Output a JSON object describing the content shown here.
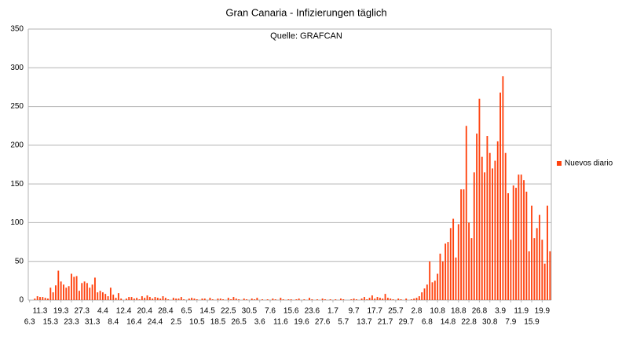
{
  "chart_data": {
    "type": "bar",
    "title": "Gran Canaria - Infizierungen täglich",
    "subtitle": "Quelle: GRAFCAN",
    "categories": [
      "6.3",
      null,
      null,
      null,
      "11.3",
      null,
      null,
      null,
      "15.3",
      null,
      null,
      null,
      "19.3",
      null,
      null,
      null,
      "23.3",
      null,
      null,
      null,
      "27.3",
      null,
      null,
      null,
      "31.3",
      null,
      null,
      null,
      "4.4",
      null,
      null,
      null,
      "8.4",
      null,
      null,
      null,
      "12.4",
      null,
      null,
      null,
      "16.4",
      null,
      null,
      null,
      "20.4",
      null,
      null,
      null,
      "24.4",
      null,
      null,
      null,
      "28.4",
      null,
      null,
      null,
      "2.5",
      null,
      null,
      null,
      "6.5",
      null,
      null,
      null,
      "10.5",
      null,
      null,
      null,
      "14.5",
      null,
      null,
      null,
      "18.5",
      null,
      null,
      null,
      "22.5",
      null,
      null,
      null,
      "26.5",
      null,
      null,
      null,
      "30.5",
      null,
      null,
      null,
      "3.6",
      null,
      null,
      null,
      "7.6",
      null,
      null,
      null,
      "11.6",
      null,
      null,
      null,
      "15.6",
      null,
      null,
      null,
      "19.6",
      null,
      null,
      null,
      "23.6",
      null,
      null,
      null,
      "27.6",
      null,
      null,
      null,
      "1.7",
      null,
      null,
      null,
      "5.7",
      null,
      null,
      null,
      "9.7",
      null,
      null,
      null,
      "13.7",
      null,
      null,
      null,
      "17.7",
      null,
      null,
      null,
      "21.7",
      null,
      null,
      null,
      "25.7",
      null,
      null,
      null,
      "29.7",
      null,
      null,
      null,
      "2.8",
      null,
      null,
      null,
      "6.8",
      null,
      null,
      null,
      "10.8",
      null,
      null,
      null,
      "14.8",
      null,
      null,
      null,
      "18.8",
      null,
      null,
      null,
      "22.8",
      null,
      null,
      null,
      "26.8",
      null,
      null,
      null,
      "30.8",
      null,
      null,
      null,
      "3.9",
      null,
      null,
      null,
      "7.9",
      null,
      null,
      null,
      "11.9",
      null,
      null,
      null,
      "15.9",
      null,
      null,
      null,
      "19.9",
      null,
      null,
      null
    ],
    "series": [
      {
        "name": "Nuevos diario",
        "color": "#ff420e",
        "values": [
          0,
          0,
          2,
          5,
          4,
          4,
          3,
          2,
          16,
          10,
          19,
          38,
          24,
          20,
          16,
          18,
          34,
          30,
          31,
          12,
          22,
          24,
          22,
          16,
          20,
          29,
          10,
          12,
          10,
          8,
          5,
          16,
          7,
          3,
          9,
          2,
          0,
          2,
          4,
          4,
          2,
          3,
          1,
          5,
          3,
          6,
          4,
          2,
          4,
          3,
          2,
          5,
          3,
          1,
          0,
          3,
          2,
          2,
          4,
          1,
          0,
          2,
          3,
          2,
          1,
          0,
          2,
          2,
          0,
          3,
          1,
          0,
          2,
          2,
          1,
          0,
          3,
          1,
          4,
          2,
          1,
          0,
          2,
          1,
          0,
          2,
          1,
          3,
          0,
          1,
          0,
          1,
          0,
          2,
          1,
          0,
          3,
          1,
          0,
          1,
          1,
          0,
          1,
          2,
          0,
          1,
          0,
          3,
          1,
          0,
          1,
          0,
          2,
          1,
          0,
          1,
          0,
          1,
          0,
          2,
          1,
          0,
          0,
          1,
          2,
          1,
          0,
          2,
          4,
          1,
          3,
          6,
          2,
          4,
          3,
          2,
          8,
          3,
          2,
          1,
          0,
          2,
          1,
          0,
          2,
          0,
          1,
          2,
          3,
          5,
          10,
          15,
          20,
          50,
          23,
          25,
          34,
          60,
          50,
          73,
          75,
          93,
          105,
          55,
          98,
          143,
          143,
          225,
          100,
          80,
          165,
          215,
          260,
          185,
          165,
          212,
          190,
          170,
          180,
          205,
          268,
          289,
          190,
          138,
          78,
          148,
          145,
          162,
          162,
          155,
          140,
          63,
          122,
          80,
          93,
          110,
          78,
          47,
          122,
          63
        ]
      }
    ],
    "ylim": [
      0,
      350
    ],
    "yticks": [
      0,
      50,
      100,
      150,
      200,
      250,
      300,
      350
    ],
    "grid": true,
    "legend": "right"
  }
}
